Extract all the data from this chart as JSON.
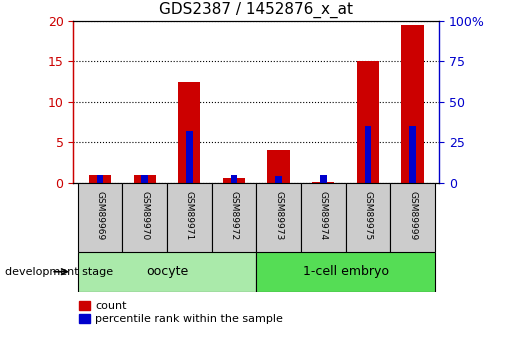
{
  "title": "GDS2387 / 1452876_x_at",
  "samples": [
    "GSM89969",
    "GSM89970",
    "GSM89971",
    "GSM89972",
    "GSM89973",
    "GSM89974",
    "GSM89975",
    "GSM89999"
  ],
  "count_values": [
    1.0,
    1.0,
    12.5,
    0.6,
    4.0,
    0.05,
    15.0,
    19.5
  ],
  "percentile_values": [
    5.0,
    5.0,
    32.0,
    5.0,
    4.0,
    5.0,
    35.0,
    35.0
  ],
  "left_ylim": [
    0,
    20
  ],
  "right_ylim": [
    0,
    100
  ],
  "left_yticks": [
    0,
    5,
    10,
    15,
    20
  ],
  "right_yticks": [
    0,
    25,
    50,
    75,
    100
  ],
  "right_yticklabels": [
    "0",
    "25",
    "50",
    "75",
    "100%"
  ],
  "bar_color": "#cc0000",
  "percentile_color": "#0000cc",
  "groups": [
    {
      "label": "oocyte",
      "start": 0,
      "end": 3,
      "color": "#aaeaaa"
    },
    {
      "label": "1-cell embryo",
      "start": 4,
      "end": 7,
      "color": "#55dd55"
    }
  ],
  "group_label_text": "development stage",
  "bar_width": 0.5,
  "pct_bar_width": 0.15,
  "grid_color": "black",
  "tick_label_color_left": "#cc0000",
  "tick_label_color_right": "#0000cc",
  "legend_count_label": "count",
  "legend_percentile_label": "percentile rank within the sample",
  "sample_box_color": "#cccccc",
  "background_color": "#ffffff"
}
